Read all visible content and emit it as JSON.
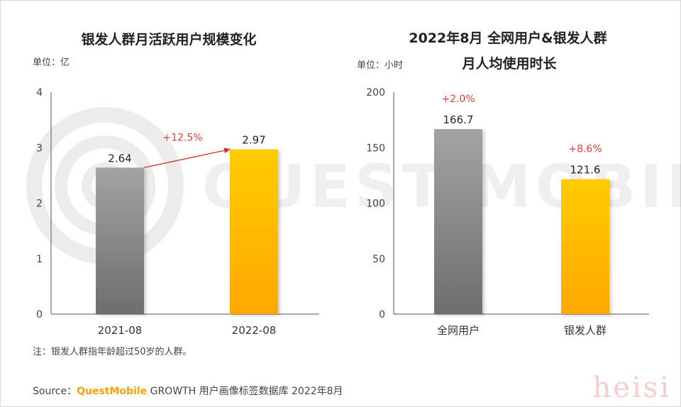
{
  "chart_data": [
    {
      "type": "bar",
      "title": "银发人群月活跃用户规模变化",
      "unit_label": "单位：亿",
      "categories": [
        "2021-08",
        "2022-08"
      ],
      "values": [
        2.64,
        2.97
      ],
      "value_labels": [
        "2.64",
        "2.97"
      ],
      "ylim": [
        0,
        4
      ],
      "yticks": [
        "0",
        "1",
        "2",
        "3",
        "4"
      ],
      "growth_label": "+12.5%",
      "bar_colors": [
        "#8a8a8a",
        "#ffc000"
      ]
    },
    {
      "type": "bar",
      "title_lines": [
        "2022年8月 全网用户&银发人群",
        "月人均使用时长"
      ],
      "unit_label": "单位：小时",
      "categories": [
        "全网用户",
        "银发人群"
      ],
      "values": [
        166.7,
        121.6
      ],
      "value_labels": [
        "166.7",
        "121.6"
      ],
      "growth_labels": [
        "+2.0%",
        "+8.6%"
      ],
      "ylim": [
        0,
        200
      ],
      "yticks": [
        "0",
        "50",
        "100",
        "150",
        "200"
      ],
      "bar_colors": [
        "#8a8a8a",
        "#ffc000"
      ]
    }
  ],
  "note": "注：银发人群指年龄超过50岁的人群。",
  "source": {
    "prefix": "Source：",
    "brand": "QuestMobile",
    "suffix": " GROWTH 用户画像标签数据库 2022年8月"
  },
  "watermark": {
    "brand_text": "QUEST MOBILE",
    "corner_text": "heisi"
  },
  "colors": {
    "accent_red": "#e03c3c",
    "brand_orange": "#f5a300",
    "axis": "#555555"
  }
}
